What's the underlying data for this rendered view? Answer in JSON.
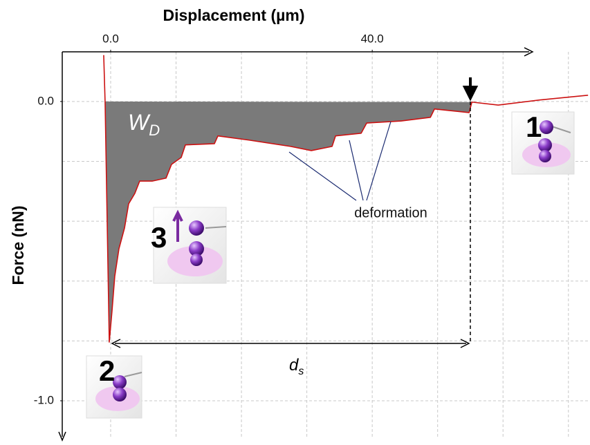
{
  "chart_data": {
    "type": "line",
    "x_label": "Displacement (µm)",
    "y_label": "Force (nN)",
    "xlim": [
      -7.4,
      73.3
    ],
    "ylim": [
      -1.127,
      0.166
    ],
    "xticks": [
      {
        "value": 0,
        "label": "0.0"
      },
      {
        "value": 40,
        "label": "40.0"
      }
    ],
    "yticks": [
      {
        "value": 0,
        "label": "0.0"
      },
      {
        "value": -1,
        "label": "-1.0"
      }
    ],
    "xgrid": [
      0,
      10,
      20,
      30,
      40,
      50,
      60,
      70
    ],
    "ygrid": [
      0,
      -0.2,
      -0.4,
      -0.6,
      -0.8,
      -1.0
    ],
    "grid": true,
    "fill_area": true,
    "area_color": "#7a7a7a",
    "x": [
      -1.06,
      -0.85,
      -0.21,
      0.21,
      0.63,
      1.27,
      2.12,
      2.75,
      3.7,
      4.44,
      6.35,
      8.47,
      9.31,
      10.79,
      11.43,
      15.87,
      16.4,
      21.16,
      27.51,
      30.69,
      33.86,
      34.39,
      38.31,
      39.15,
      44.44,
      48.89,
      49.52,
      54.81,
      55.24,
      59.26,
      65.61,
      73.0
    ],
    "series": [
      {
        "color": "#cc1111",
        "values": [
          0.155,
          0.0,
          -0.804,
          -0.7,
          -0.584,
          -0.492,
          -0.423,
          -0.342,
          -0.307,
          -0.266,
          -0.266,
          -0.256,
          -0.21,
          -0.187,
          -0.145,
          -0.141,
          -0.115,
          -0.129,
          -0.15,
          -0.164,
          -0.15,
          -0.115,
          -0.106,
          -0.072,
          -0.065,
          -0.053,
          -0.025,
          -0.037,
          -0.002,
          -0.012,
          0.005,
          0.021
        ]
      }
    ],
    "annotations": {
      "area_label": "W",
      "area_label_sub": "D",
      "distance_label": "d",
      "distance_label_sub": "s",
      "deformation_label": "deformation",
      "step_labels": [
        "1",
        "2",
        "3"
      ]
    }
  }
}
